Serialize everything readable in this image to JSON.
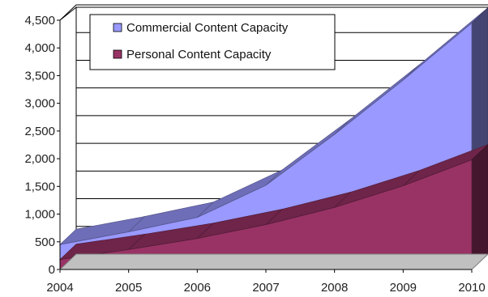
{
  "chart_data": {
    "type": "area",
    "x": [
      "2004",
      "2005",
      "2006",
      "2007",
      "2008",
      "2009",
      "2010"
    ],
    "series": [
      {
        "name": "Commercial Content Capacity",
        "values": [
          450,
          680,
          940,
          1520,
          2440,
          3420,
          4450
        ],
        "color": "#9999ff"
      },
      {
        "name": "Personal Content Capacity",
        "values": [
          180,
          360,
          560,
          810,
          1120,
          1510,
          1980
        ],
        "color": "#993366"
      }
    ],
    "yticks": [
      "0",
      "500",
      "1,000",
      "1,500",
      "2,000",
      "2,500",
      "3,000",
      "3,500",
      "4,000",
      "4,500"
    ],
    "ylim": [
      0,
      4500
    ],
    "grid": true,
    "legend": "top-left",
    "style": "3d"
  }
}
